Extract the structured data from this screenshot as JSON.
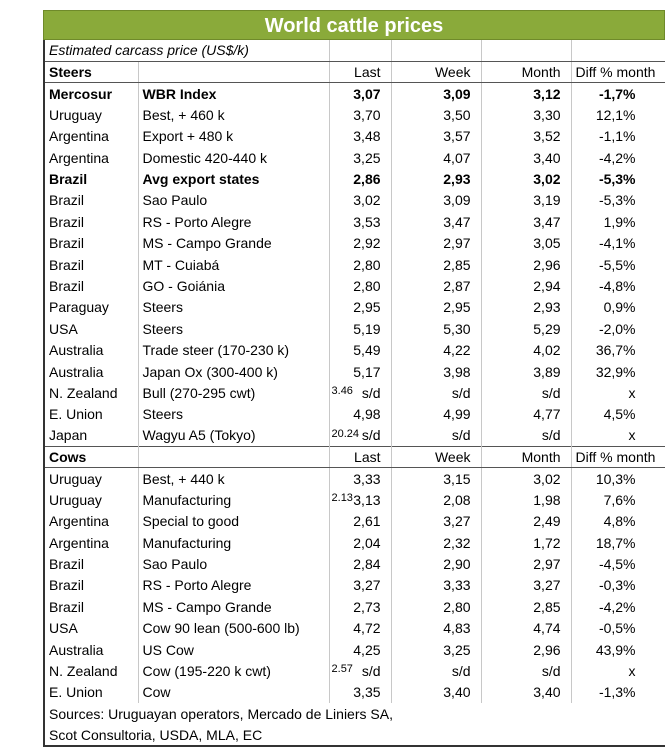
{
  "header": {
    "title": "World cattle prices",
    "subtitle": "Estimated carcass price (US$/k)"
  },
  "sections": [
    {
      "label": "Steers",
      "columns": [
        "Last",
        "Week",
        "Month",
        "Diff % month"
      ],
      "rows": [
        {
          "cells": [
            "Mercosur",
            "WBR Index",
            "3,07",
            "3,09",
            "3,12",
            "-1,7%"
          ],
          "bold": true
        },
        {
          "cells": [
            "Uruguay",
            "Best, + 460 k",
            "3,70",
            "3,50",
            "3,30",
            "12,1%"
          ]
        },
        {
          "cells": [
            "Argentina",
            "Export + 480 k",
            "3,48",
            "3,57",
            "3,52",
            "-1,1%"
          ]
        },
        {
          "cells": [
            "Argentina",
            "Domestic 420-440 k",
            "3,25",
            "4,07",
            "3,40",
            "-4,2%"
          ]
        },
        {
          "cells": [
            "Brazil",
            "Avg export states",
            "2,86",
            "2,93",
            "3,02",
            "-5,3%"
          ],
          "bold": true
        },
        {
          "cells": [
            "Brazil",
            "Sao Paulo",
            "3,02",
            "3,09",
            "3,19",
            "-5,3%"
          ]
        },
        {
          "cells": [
            "Brazil",
            "RS - Porto Alegre",
            "3,53",
            "3,47",
            "3,47",
            "1,9%"
          ]
        },
        {
          "cells": [
            "Brazil",
            "MS - Campo Grande",
            "2,92",
            "2,97",
            "3,05",
            "-4,1%"
          ]
        },
        {
          "cells": [
            "Brazil",
            "MT - Cuiabá",
            "2,80",
            "2,85",
            "2,96",
            "-5,5%"
          ]
        },
        {
          "cells": [
            "Brazil",
            "GO - Goiánia",
            "2,80",
            "2,87",
            "2,94",
            "-4,8%"
          ]
        },
        {
          "cells": [
            "Paraguay",
            "Steers",
            "2,95",
            "2,95",
            "2,93",
            "0,9%"
          ]
        },
        {
          "cells": [
            "USA",
            "Steers",
            "5,19",
            "5,30",
            "5,29",
            "-2,0%"
          ]
        },
        {
          "cells": [
            "Australia",
            "Trade steer (170-230 k)",
            "5,49",
            "4,22",
            "4,02",
            "36,7%"
          ]
        },
        {
          "cells": [
            "Australia",
            "Japan Ox (300-400 k)",
            "5,17",
            "3,98",
            "3,89",
            "32,9%"
          ]
        },
        {
          "cells": [
            "N. Zealand",
            "Bull (270-295 cwt)",
            "s/d",
            "s/d",
            "s/d",
            "x"
          ],
          "overlay": "3.46"
        },
        {
          "cells": [
            "E. Union",
            "Steers",
            "4,98",
            "4,99",
            "4,77",
            "4,5%"
          ]
        },
        {
          "cells": [
            "Japan",
            "Wagyu A5 (Tokyo)",
            "s/d",
            "s/d",
            "s/d",
            "x"
          ],
          "overlay": "20.24"
        }
      ]
    },
    {
      "label": "Cows",
      "columns": [
        "Last",
        "Week",
        "Month",
        "Diff % month"
      ],
      "rows": [
        {
          "cells": [
            "Uruguay",
            "Best, + 440 k",
            "3,33",
            "3,15",
            "3,02",
            "10,3%"
          ]
        },
        {
          "cells": [
            "Uruguay",
            "Manufacturing",
            "3,13",
            "2,08",
            "1,98",
            "7,6%"
          ],
          "overlay": "2.13"
        },
        {
          "cells": [
            "Argentina",
            "Special to good",
            "2,61",
            "3,27",
            "2,49",
            "4,8%"
          ]
        },
        {
          "cells": [
            "Argentina",
            "Manufacturing",
            "2,04",
            "2,32",
            "1,72",
            "18,7%"
          ]
        },
        {
          "cells": [
            "Brazil",
            "Sao Paulo",
            "2,84",
            "2,90",
            "2,97",
            "-4,5%"
          ]
        },
        {
          "cells": [
            "Brazil",
            "RS - Porto Alegre",
            "3,27",
            "3,33",
            "3,27",
            "-0,3%"
          ]
        },
        {
          "cells": [
            "Brazil",
            "MS - Campo Grande",
            "2,73",
            "2,80",
            "2,85",
            "-4,2%"
          ]
        },
        {
          "cells": [
            "USA",
            "Cow 90 lean (500-600 lb)",
            "4,72",
            "4,83",
            "4,74",
            "-0,5%"
          ]
        },
        {
          "cells": [
            "Australia",
            "US Cow",
            "4,25",
            "3,25",
            "2,96",
            "43,9%"
          ]
        },
        {
          "cells": [
            "N. Zealand",
            "Cow (195-220 k cwt)",
            "s/d",
            "s/d",
            "s/d",
            "x"
          ],
          "overlay": "2.57"
        },
        {
          "cells": [
            "E. Union",
            "Cow",
            "3,35",
            "3,40",
            "3,40",
            "-1,3%"
          ]
        }
      ]
    }
  ],
  "sources": [
    "Sources: Uruguayan operators, Mercado de Liniers SA,",
    "Scot Consultoria, USDA, MLA, EC"
  ]
}
